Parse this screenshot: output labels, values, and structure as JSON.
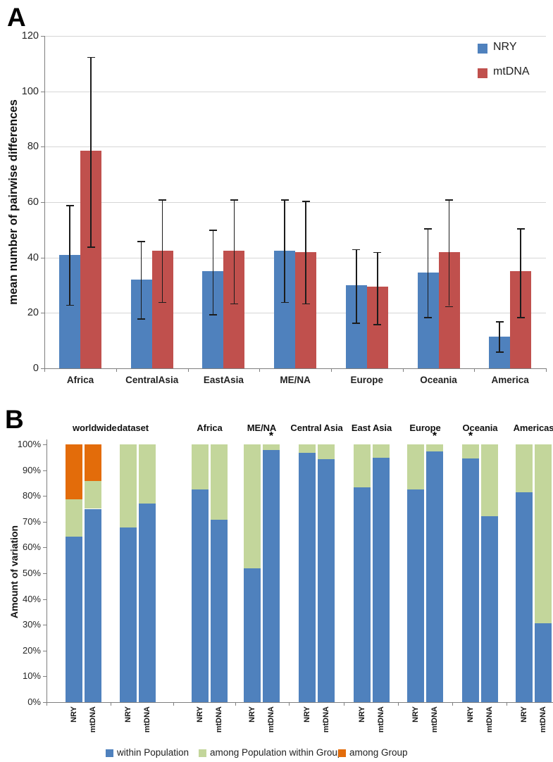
{
  "figure": {
    "panel_a": {
      "label": "A"
    },
    "panel_b": {
      "label": "B"
    }
  },
  "chart_data": [
    {
      "type": "bar",
      "panel": "A",
      "title": "",
      "xlabel": "",
      "ylabel": "mean number of pairwise differences",
      "ylim": [
        0,
        120
      ],
      "ytick_step": 20,
      "ytick_labels": [
        "0",
        "20",
        "40",
        "60",
        "80",
        "100",
        "120"
      ],
      "grid": true,
      "error_bars": true,
      "legend_position": "top-right",
      "categories": [
        "Africa",
        "CentralAsia",
        "EastAsia",
        "ME/NA",
        "Europe",
        "Oceania",
        "America"
      ],
      "series": [
        {
          "name": "NRY",
          "color": "#4f81bd",
          "values": [
            41,
            32,
            35,
            42.5,
            30,
            34.5,
            11.5
          ],
          "error_low": [
            23,
            18,
            19.5,
            24,
            16.5,
            18.5,
            6
          ],
          "error_high": [
            59,
            46,
            50,
            61,
            43,
            50.5,
            17
          ]
        },
        {
          "name": "mtDNA",
          "color": "#c0504d",
          "values": [
            78.5,
            42.5,
            42.5,
            42,
            29.5,
            42,
            35
          ],
          "error_low": [
            44,
            24,
            23.5,
            23.5,
            16,
            22.5,
            18.5
          ],
          "error_high": [
            112.5,
            61,
            61,
            60.5,
            42,
            61,
            50.5
          ]
        }
      ]
    },
    {
      "type": "stacked-bar",
      "panel": "B",
      "title": "",
      "xlabel": "",
      "ylabel": "Amount of variation",
      "ylim": [
        "0%",
        "100%"
      ],
      "ytick_labels": [
        "0%",
        "10%",
        "20%",
        "30%",
        "40%",
        "50%",
        "60%",
        "70%",
        "80%",
        "90%",
        "100%"
      ],
      "grid": false,
      "legend_position": "bottom",
      "legend": [
        {
          "label": "within Population",
          "color": "#4f81bd"
        },
        {
          "label": "among Population within Group",
          "color": "#c3d69b"
        },
        {
          "label": "among Group",
          "color": "#e36c0a"
        }
      ],
      "segment_order": [
        "within Population",
        "among Population within Group",
        "among Group"
      ],
      "groups": [
        {
          "label": "worldwide dataset",
          "pairs": [
            [
              {
                "label": "NRY",
                "segments": [
                  64.3,
                  14.4,
                  21.3
                ],
                "asterisk": false
              },
              {
                "label": "mtDNA",
                "segments": [
                  75,
                  10.7,
                  14.3
                ],
                "asterisk": false
              }
            ],
            [
              {
                "label": "NRY",
                "segments": [
                  67.8,
                  32.2,
                  0
                ],
                "asterisk": false
              },
              {
                "label": "mtDNA",
                "segments": [
                  77,
                  23,
                  0
                ],
                "asterisk": false
              }
            ]
          ]
        },
        {
          "label": "Africa",
          "pairs": [
            [
              {
                "label": "NRY",
                "segments": [
                  82.5,
                  17.5,
                  0
                ],
                "asterisk": false
              },
              {
                "label": "mtDNA",
                "segments": [
                  70.7,
                  29.3,
                  0
                ],
                "asterisk": false
              }
            ]
          ]
        },
        {
          "label": "ME/NA",
          "pairs": [
            [
              {
                "label": "NRY",
                "segments": [
                  51.8,
                  48.2,
                  0
                ],
                "asterisk": false
              },
              {
                "label": "mtDNA",
                "segments": [
                  97.7,
                  2.3,
                  0
                ],
                "asterisk": true
              }
            ]
          ]
        },
        {
          "label": "Central Asia",
          "pairs": [
            [
              {
                "label": "NRY",
                "segments": [
                  96.7,
                  3.3,
                  0
                ],
                "asterisk": false
              },
              {
                "label": "mtDNA",
                "segments": [
                  94.3,
                  5.7,
                  0
                ],
                "asterisk": false
              }
            ]
          ]
        },
        {
          "label": "East Asia",
          "pairs": [
            [
              {
                "label": "NRY",
                "segments": [
                  83.2,
                  16.8,
                  0
                ],
                "asterisk": false
              },
              {
                "label": "mtDNA",
                "segments": [
                  94.8,
                  5.2,
                  0
                ],
                "asterisk": false
              }
            ]
          ]
        },
        {
          "label": "Europe",
          "pairs": [
            [
              {
                "label": "NRY",
                "segments": [
                  82.4,
                  17.6,
                  0
                ],
                "asterisk": false
              },
              {
                "label": "mtDNA",
                "segments": [
                  97.4,
                  2.6,
                  0
                ],
                "asterisk": true
              }
            ]
          ]
        },
        {
          "label": "Oceania",
          "pairs": [
            [
              {
                "label": "NRY",
                "segments": [
                  94.5,
                  5.5,
                  0
                ],
                "asterisk": true
              },
              {
                "label": "mtDNA",
                "segments": [
                  72.2,
                  27.8,
                  0
                ],
                "asterisk": false
              }
            ]
          ]
        },
        {
          "label": "Americas",
          "pairs": [
            [
              {
                "label": "NRY",
                "segments": [
                  81.5,
                  18.5,
                  0
                ],
                "asterisk": false
              },
              {
                "label": "mtDNA",
                "segments": [
                  30.5,
                  69.5,
                  0
                ],
                "asterisk": false
              }
            ]
          ]
        }
      ]
    }
  ]
}
